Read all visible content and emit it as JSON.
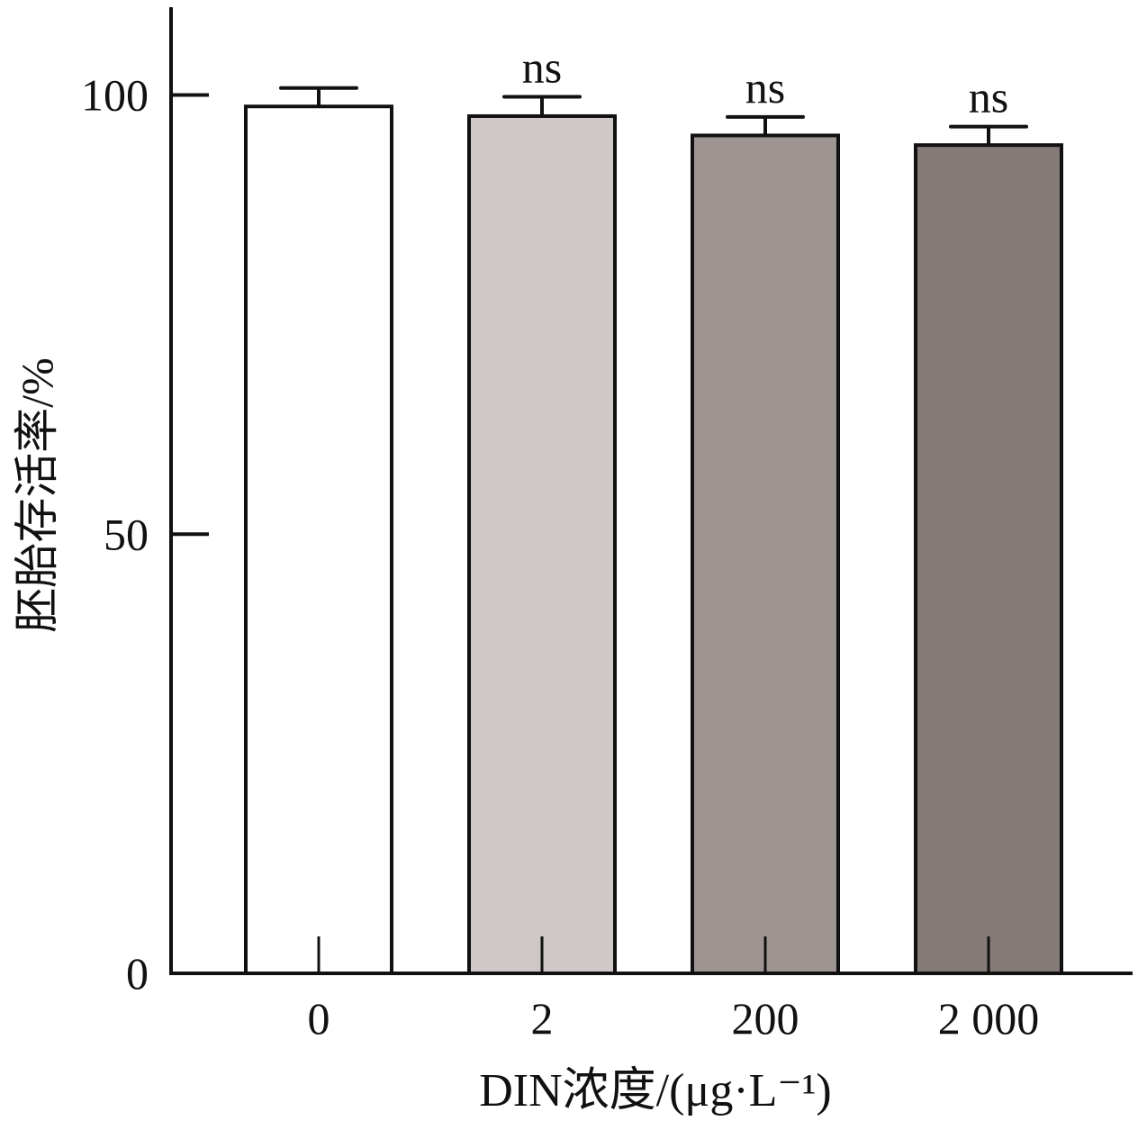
{
  "chart_data": {
    "type": "bar",
    "title": "",
    "xlabel": "DIN浓度/(μg·L⁻¹)",
    "ylabel": "胚胎存活率/%",
    "categories": [
      "0",
      "2",
      "200",
      "2 000"
    ],
    "values": [
      98.7,
      97.6,
      95.4,
      94.3
    ],
    "errors": [
      2.1,
      2.2,
      2.1,
      2.1
    ],
    "annotations": [
      "",
      "ns",
      "ns",
      "ns"
    ],
    "ylim": [
      0,
      110
    ],
    "yticks": [
      0,
      50,
      100
    ],
    "ytick_labels": [
      "0",
      "50",
      "100"
    ],
    "grid": false,
    "colors": [
      "#ffffff",
      "#d0c8c6",
      "#9e9593",
      "#847a77"
    ]
  }
}
